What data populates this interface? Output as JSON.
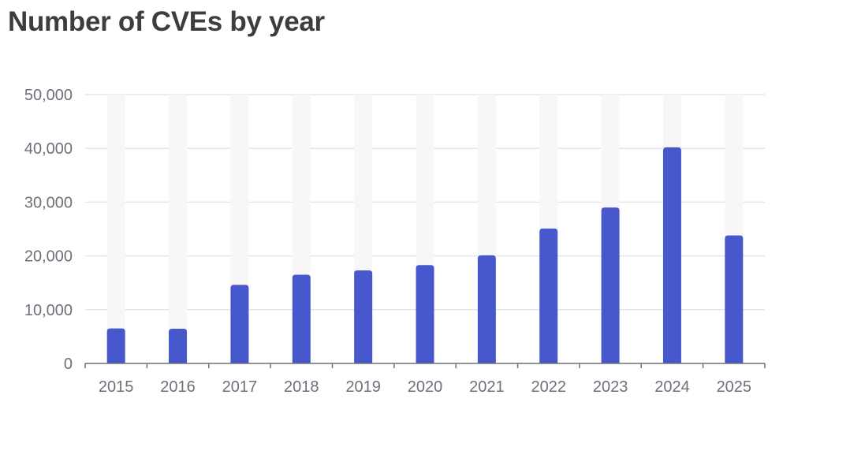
{
  "colors": {
    "bar": "#4758cc",
    "background_bar": "#f7f7f7",
    "grid": "#e0e6f1",
    "axis": "#6e7079",
    "title": "#3d3d3d"
  },
  "chart_data": {
    "type": "bar",
    "title": "Number of CVEs by year",
    "xlabel": "",
    "ylabel": "",
    "categories": [
      "2015",
      "2016",
      "2017",
      "2018",
      "2019",
      "2020",
      "2021",
      "2022",
      "2023",
      "2024",
      "2025"
    ],
    "values": [
      6500,
      6450,
      14600,
      16500,
      17300,
      18300,
      20100,
      25100,
      29000,
      40200,
      23800
    ],
    "ylim": [
      0,
      50000
    ],
    "yticks": [
      0,
      10000,
      20000,
      30000,
      40000,
      50000
    ],
    "ytick_labels": [
      "0",
      "10,000",
      "20,000",
      "30,000",
      "40,000",
      "50,000"
    ],
    "grid": true,
    "show_background_bars": true,
    "legend": "none"
  }
}
